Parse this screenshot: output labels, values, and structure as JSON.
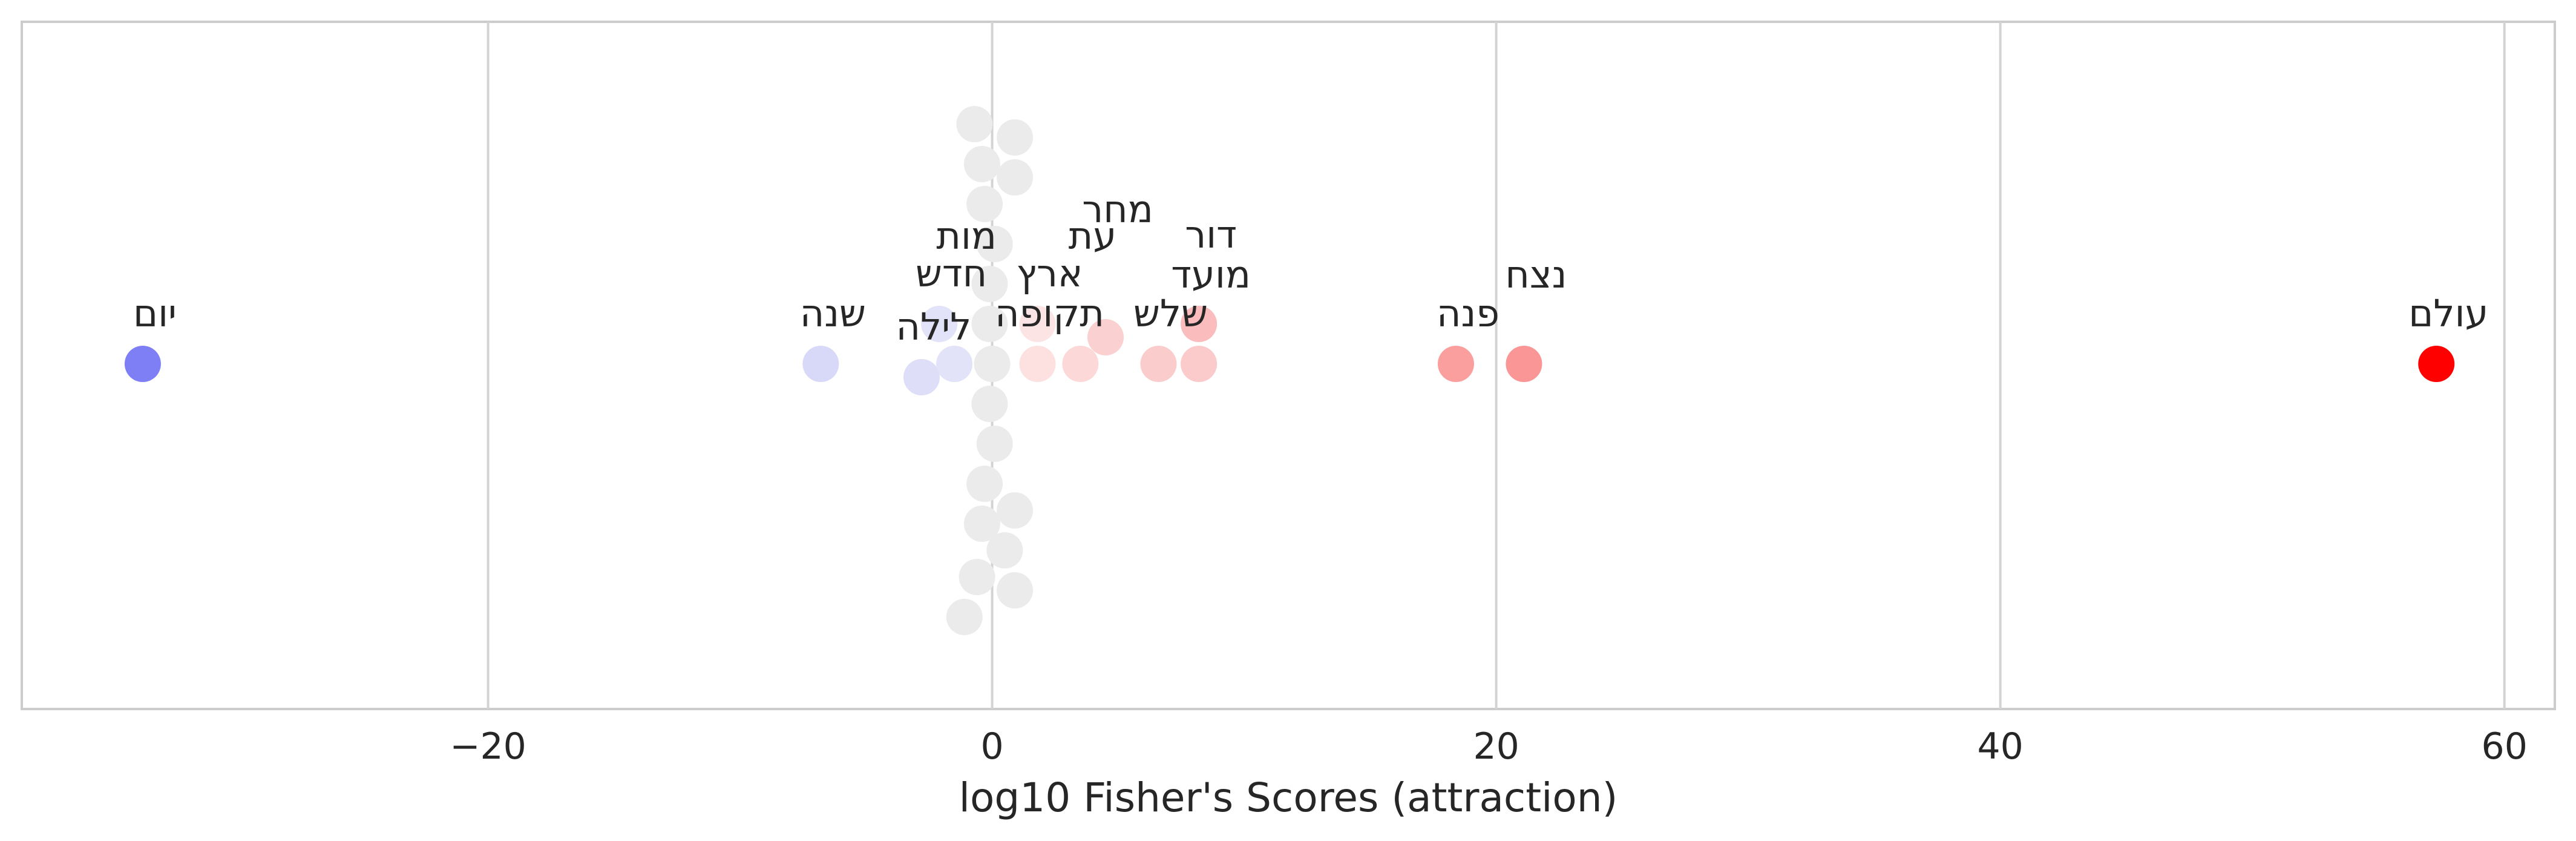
{
  "chart_data": {
    "type": "scatter",
    "title": "",
    "xlabel": "log10 Fisher's Scores (attraction)",
    "ylabel": "",
    "xlim": [
      -38.5,
      62
    ],
    "xticks": [
      -20,
      0,
      20,
      40,
      60
    ],
    "xtick_labels": [
      "−20",
      "0",
      "20",
      "40",
      "60"
    ],
    "grid": "x",
    "colors": {
      "negative_strong": "#7f7ff5",
      "negative_weak": "#dadaf7",
      "neutral": "#ebebeb",
      "positive_weak": "#fddada",
      "positive_mid": "#fbcaca",
      "positive_strong": "#fa9a9a",
      "positive_max": "#ff0000",
      "grid": "#d3d3d3",
      "frame": "#cccccc"
    },
    "labeled_points": [
      {
        "word": "יום",
        "x": -33.7,
        "color": "#7f7ff5"
      },
      {
        "word": "שנה",
        "x": -6.8,
        "color": "#d8d8f8"
      },
      {
        "word": "לילה",
        "x": -2.8,
        "color": "#dedef8"
      },
      {
        "word": "חדש",
        "x": -2.1,
        "color": "#e2e2f8"
      },
      {
        "word": "מות",
        "x": -1.5,
        "color": "#e2e2f8"
      },
      {
        "word": "תקופה",
        "x": 1.8,
        "color": "#fde0e0"
      },
      {
        "word": "ארץ",
        "x": 1.8,
        "color": "#fde4e4"
      },
      {
        "word": "עת",
        "x": 3.5,
        "color": "#fcd8d8"
      },
      {
        "word": "מחר",
        "x": 4.5,
        "color": "#fbd0d0"
      },
      {
        "word": "שלש",
        "x": 6.6,
        "color": "#fbcccc"
      },
      {
        "word": "מועד",
        "x": 8.2,
        "color": "#fbcaca"
      },
      {
        "word": "דור",
        "x": 8.2,
        "color": "#fabcbc"
      },
      {
        "word": "פנה",
        "x": 18.4,
        "color": "#fa9e9e"
      },
      {
        "word": "נצח",
        "x": 21.1,
        "color": "#fa9696"
      },
      {
        "word": "עולם",
        "x": 57.3,
        "color": "#ff0000"
      }
    ],
    "neutral_points_x": [
      -0.1,
      0.9,
      0.0,
      -0.1,
      -0.1,
      -0.3,
      0.9,
      -0.7,
      0.1,
      -1.1,
      0.5,
      -0.6,
      0.9,
      -0.4,
      -0.4,
      -0.3,
      0.1,
      0.9
    ]
  }
}
